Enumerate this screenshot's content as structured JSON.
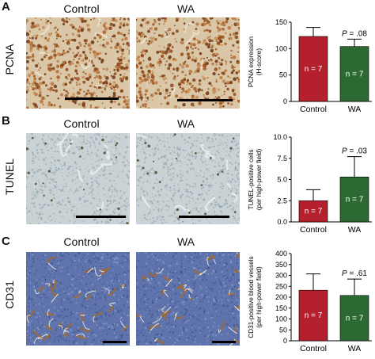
{
  "colors": {
    "control": "#b5202e",
    "wa": "#2d6a33"
  },
  "panels": [
    {
      "letter": "A",
      "stain": "PCNA",
      "col_labels": [
        "Control",
        "WA"
      ],
      "micrograph_style": "pcna-brown-nuclei"
    },
    {
      "letter": "B",
      "stain": "TUNEL",
      "col_labels": [
        "Control",
        "WA"
      ],
      "micrograph_style": "tunel-pale-blue"
    },
    {
      "letter": "C",
      "stain": "CD31",
      "col_labels": [
        "Control",
        "WA"
      ],
      "micrograph_style": "cd31-blue-vessels"
    }
  ],
  "chart_data": [
    {
      "type": "bar",
      "ylabel": [
        "PCNA expression",
        "(H-score)"
      ],
      "ylim": [
        0,
        150
      ],
      "yticks": [
        0,
        50,
        100,
        150
      ],
      "categories": [
        "Control",
        "WA"
      ],
      "values": [
        123,
        104
      ],
      "errors": [
        17,
        14
      ],
      "bar_labels": [
        "n = 7",
        "n = 7"
      ],
      "pvalue": {
        "prefix": "P",
        "text": " = .08"
      }
    },
    {
      "type": "bar",
      "ylabel": [
        "TUNEL-positive cells",
        "(per high-power field)"
      ],
      "ylim": [
        0,
        10
      ],
      "yticks": [
        0.0,
        2.5,
        5.0,
        7.5,
        10.0
      ],
      "ytick_labels": [
        "0.0",
        "2.5",
        "5.0",
        "7.5",
        "10.0"
      ],
      "categories": [
        "Control",
        "WA"
      ],
      "values": [
        2.5,
        5.3
      ],
      "errors": [
        1.3,
        2.4
      ],
      "bar_labels": [
        "n = 7",
        "n = 7"
      ],
      "pvalue": {
        "prefix": "P",
        "text": " = .03"
      }
    },
    {
      "type": "bar",
      "ylabel": [
        "CD31-positive blood vessels",
        "(per high-power field)"
      ],
      "ylim": [
        0,
        400
      ],
      "yticks": [
        0,
        50,
        100,
        150,
        200,
        250,
        300,
        350,
        400
      ],
      "categories": [
        "Control",
        "WA"
      ],
      "values": [
        232,
        208
      ],
      "errors": [
        75,
        75
      ],
      "bar_labels": [
        "n = 7",
        "n = 7"
      ],
      "pvalue": {
        "prefix": "P",
        "text": " = .61"
      }
    }
  ]
}
